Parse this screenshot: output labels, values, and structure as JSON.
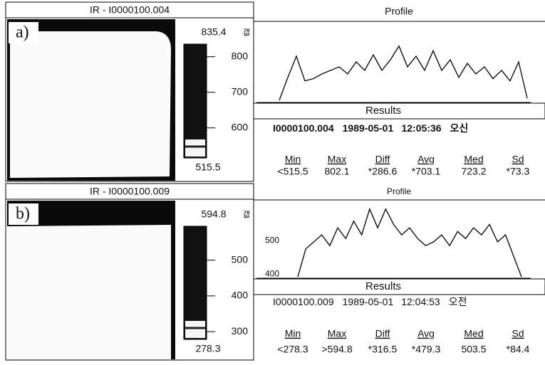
{
  "panels": [
    {
      "label": "a)",
      "title": "IR - I0000100.004",
      "scale": {
        "max": 835.4,
        "min": 515.5,
        "unit": "갮",
        "ticks": [
          600,
          700,
          800
        ]
      },
      "profile": {
        "type": "line",
        "title": "Profile",
        "ylim": [
          600,
          850
        ],
        "values": [
          605,
          683,
          755,
          671,
          679,
          695,
          707,
          719,
          695,
          736,
          707,
          760,
          707,
          743,
          790,
          719,
          755,
          707,
          774,
          707,
          743,
          683,
          731,
          695,
          719,
          679,
          707,
          671,
          736,
          612
        ]
      },
      "results": {
        "title": "Results",
        "id": "I0000100.004",
        "date": "1989-05-01",
        "time": "12:05:36",
        "suffix": "오신",
        "headers": [
          "Min",
          "Max",
          "Diff",
          "Avg",
          "Med",
          "Sd"
        ],
        "values": [
          "<515.5",
          "802.1",
          "*286.6",
          "*703.1",
          "723.2",
          "*73.3"
        ]
      }
    },
    {
      "label": "b)",
      "title": "IR - I0000100.009",
      "scale": {
        "max": 594.8,
        "min": 278.3,
        "unit": "갮",
        "ticks": [
          300,
          400,
          500
        ]
      },
      "profile": {
        "type": "line",
        "title": "Profile",
        "ylim": [
          390,
          600
        ],
        "yticks": [
          400,
          500
        ],
        "values": [
          392,
          475,
          496,
          517,
          485,
          538,
          506,
          558,
          517,
          594,
          538,
          594,
          548,
          517,
          538,
          506,
          485,
          496,
          517,
          485,
          527,
          506,
          538,
          517,
          548,
          496,
          517,
          454,
          392
        ]
      },
      "results": {
        "title": "Results",
        "id": "I0000100.009",
        "date": "1989-05-01",
        "time": "12:04:53",
        "suffix": "오전",
        "headers": [
          "Min",
          "Max",
          "Diff",
          "Avg",
          "Med",
          "Sd"
        ],
        "values": [
          "<278.3",
          ">594.8",
          "*316.5",
          "*479.3",
          "503.5",
          "*84.4"
        ]
      }
    }
  ]
}
